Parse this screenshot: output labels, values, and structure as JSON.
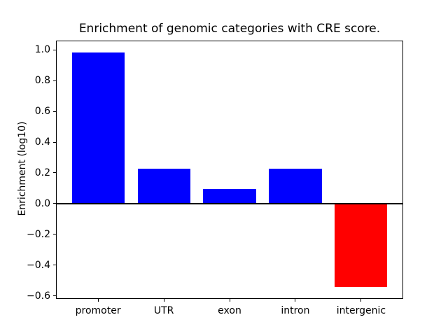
{
  "figure": {
    "background": "#ffffff",
    "frame_color": "#000000"
  },
  "chart_data": {
    "type": "bar",
    "title": "Enrichment of genomic categories with CRE score.",
    "ylabel": "Enrichment (log10)",
    "xlabel": "",
    "categories": [
      "promoter",
      "UTR",
      "exon",
      "intron",
      "intergenic"
    ],
    "values": [
      0.985,
      0.225,
      0.095,
      0.225,
      -0.545
    ],
    "bar_colors": [
      "#0000ff",
      "#0000ff",
      "#0000ff",
      "#0000ff",
      "#ff0000"
    ],
    "positive_color": "#0000ff",
    "negative_color": "#ff0000",
    "bar_width": 0.8,
    "ylim": [
      -0.62,
      1.06
    ],
    "xlim": [
      -0.64,
      4.64
    ],
    "yticks": [
      1.0,
      0.8,
      0.6,
      0.4,
      0.2,
      0.0,
      -0.2,
      -0.4,
      -0.6
    ],
    "ytick_labels": [
      "1.0",
      "0.8",
      "0.6",
      "0.4",
      "0.2",
      "0.0",
      "−0.2",
      "−0.4",
      "−0.6"
    ],
    "grid": false,
    "legend": null,
    "zero_line": true
  }
}
